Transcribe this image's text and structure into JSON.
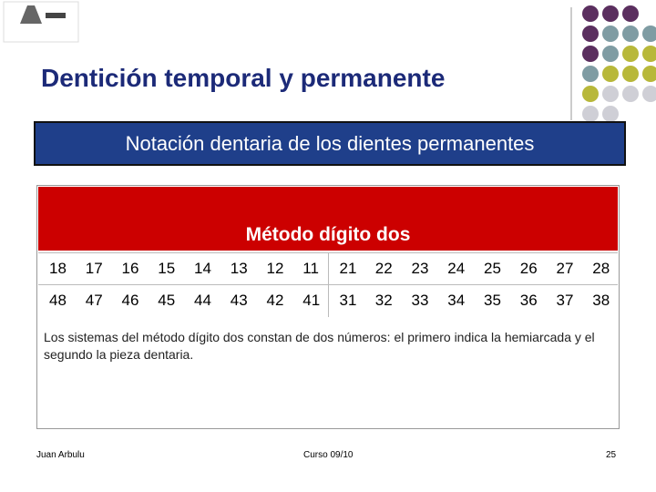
{
  "header": {
    "title": "Dentición temporal y permanente"
  },
  "banner": "Notación dentaria de los dientes permanentes",
  "table": {
    "title": "Método dígito dos",
    "rows": [
      [
        "18",
        "17",
        "16",
        "15",
        "14",
        "13",
        "12",
        "11",
        "21",
        "22",
        "23",
        "24",
        "25",
        "26",
        "27",
        "28"
      ],
      [
        "48",
        "47",
        "46",
        "45",
        "44",
        "43",
        "42",
        "41",
        "31",
        "32",
        "33",
        "34",
        "35",
        "36",
        "37",
        "38"
      ]
    ],
    "note": "Los sistemas del método dígito dos constan de dos números: el primero indica la hemiarcada y el segundo la pieza dentaria."
  },
  "footer": {
    "author": "Juan Arbulu",
    "course": "Curso 09/10",
    "page": "25"
  }
}
